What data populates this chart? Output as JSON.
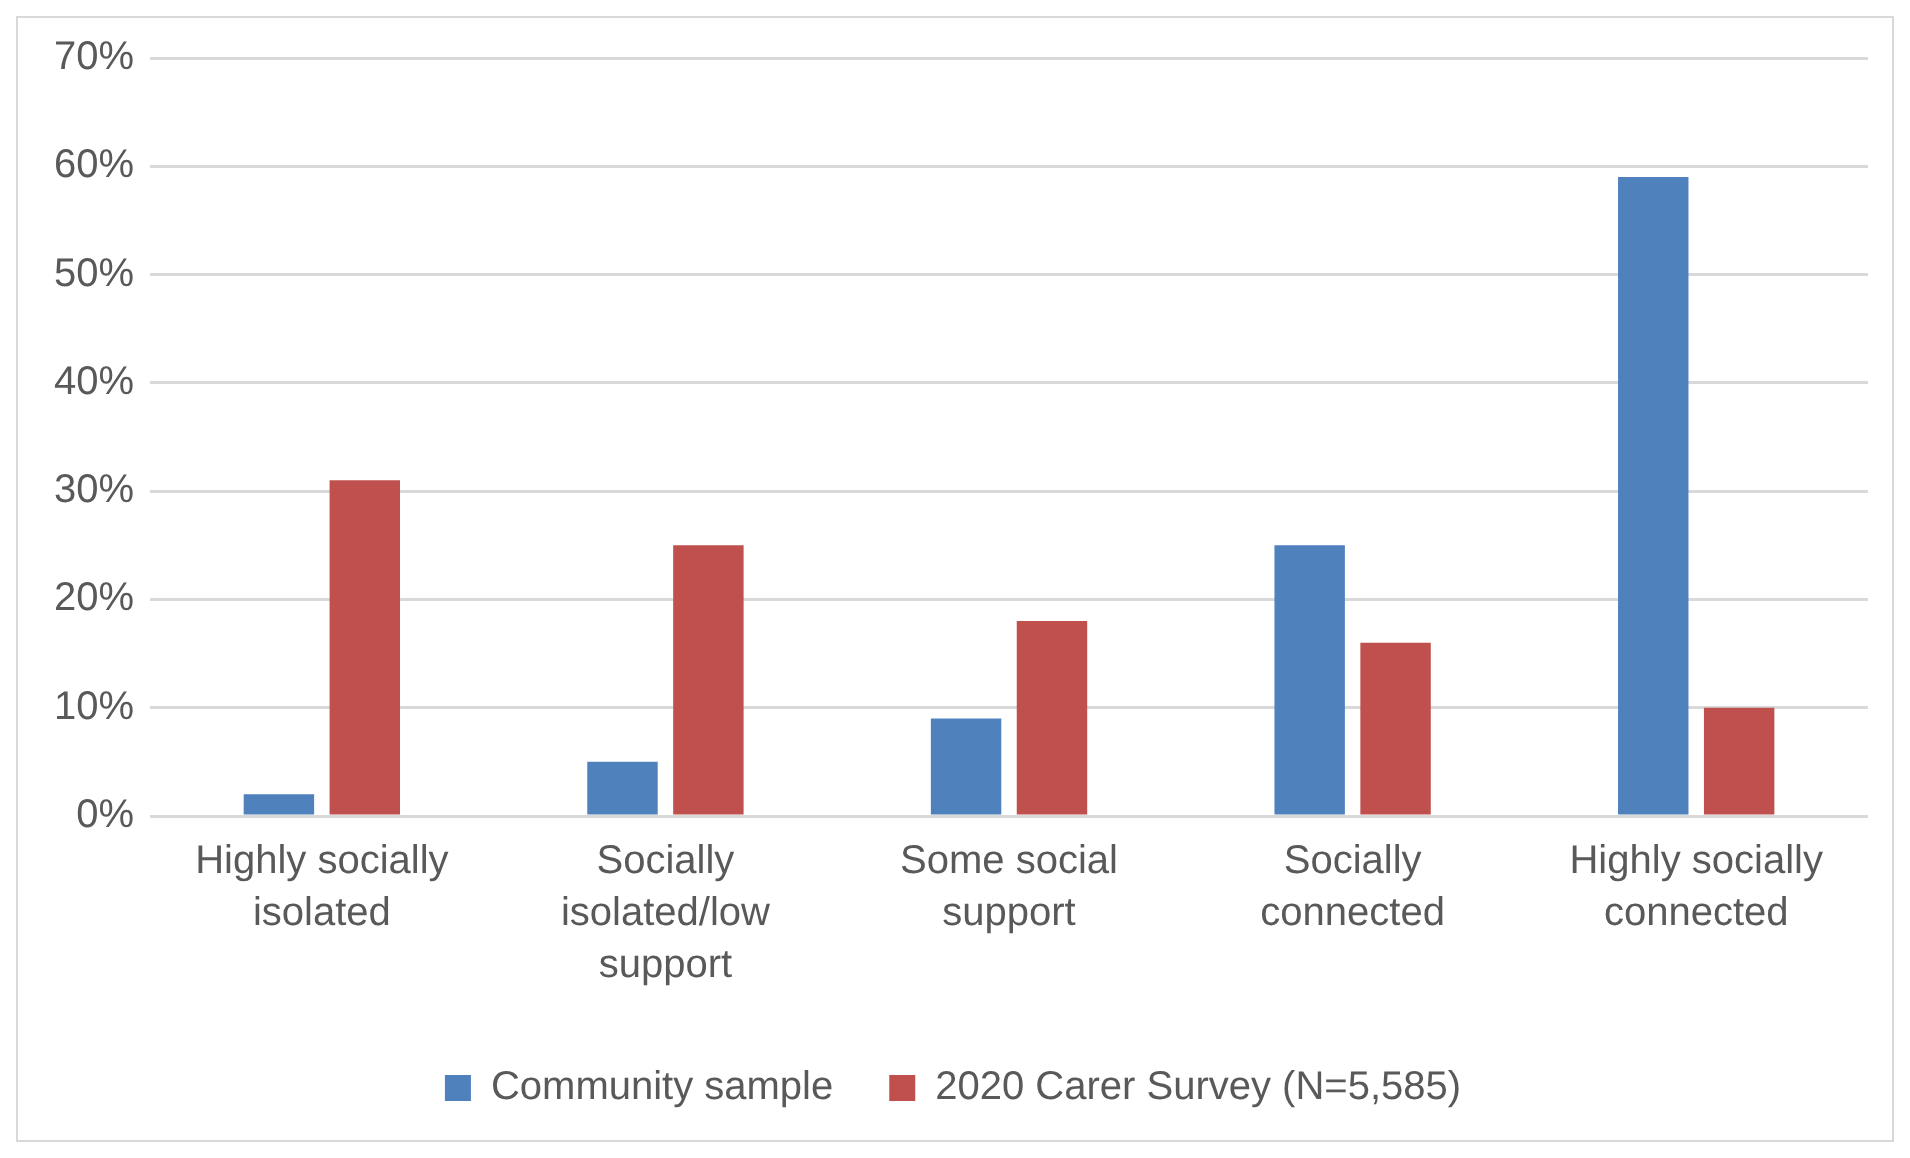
{
  "chart_data": {
    "type": "bar",
    "categories": [
      "Highly socially isolated",
      "Socially isolated/low support",
      "Some social support",
      "Socially connected",
      "Highly socially connected"
    ],
    "series": [
      {
        "name": "Community sample",
        "color": "#4f81bd",
        "values": [
          2,
          5,
          9,
          25,
          59
        ]
      },
      {
        "name": "2020 Carer Survey (N=5,585)",
        "color": "#c0504d",
        "values": [
          31,
          25,
          18,
          16,
          10
        ]
      }
    ],
    "ylim": [
      0,
      70
    ],
    "yticks": [
      {
        "value": 0,
        "label": "0%"
      },
      {
        "value": 10,
        "label": "10%"
      },
      {
        "value": 20,
        "label": "20%"
      },
      {
        "value": 30,
        "label": "30%"
      },
      {
        "value": 40,
        "label": "40%"
      },
      {
        "value": 50,
        "label": "50%"
      },
      {
        "value": 60,
        "label": "60%"
      },
      {
        "value": 70,
        "label": "70%"
      }
    ],
    "grid": "y",
    "legend": "bottom"
  }
}
